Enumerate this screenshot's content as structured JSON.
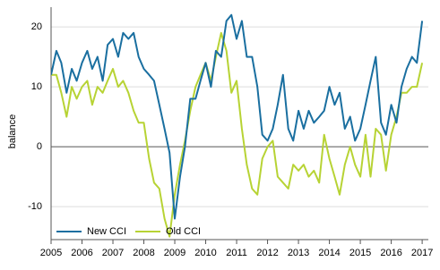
{
  "chart_data": {
    "type": "line",
    "y_label": "balance",
    "x": [
      2005,
      2005.17,
      2005.33,
      2005.5,
      2005.67,
      2005.83,
      2006,
      2006.17,
      2006.33,
      2006.5,
      2006.67,
      2006.83,
      2007,
      2007.17,
      2007.33,
      2007.5,
      2007.67,
      2007.83,
      2008,
      2008.17,
      2008.33,
      2008.5,
      2008.67,
      2008.83,
      2009,
      2009.17,
      2009.33,
      2009.5,
      2009.67,
      2009.83,
      2010,
      2010.17,
      2010.33,
      2010.5,
      2010.67,
      2010.83,
      2011,
      2011.17,
      2011.33,
      2011.5,
      2011.67,
      2011.83,
      2012,
      2012.17,
      2012.33,
      2012.5,
      2012.67,
      2012.83,
      2013,
      2013.17,
      2013.33,
      2013.5,
      2013.67,
      2013.83,
      2014,
      2014.17,
      2014.33,
      2014.5,
      2014.67,
      2014.83,
      2015,
      2015.17,
      2015.33,
      2015.5,
      2015.67,
      2015.83,
      2016,
      2016.17,
      2016.33,
      2016.5,
      2016.67,
      2016.83,
      2017
    ],
    "series": [
      {
        "name": "New CCI",
        "color": "#1a6fa0",
        "values": [
          12,
          16,
          14,
          9,
          13,
          11,
          14,
          16,
          13,
          15,
          11,
          17,
          18,
          15,
          19,
          18,
          19,
          15,
          13,
          12,
          11,
          7,
          3,
          -1,
          -12,
          -5,
          0,
          8,
          8,
          11,
          14,
          10,
          16,
          15,
          21,
          22,
          18,
          21,
          15,
          15,
          10,
          2,
          1,
          3,
          7,
          12,
          3,
          1,
          6,
          3,
          6,
          4,
          5,
          6,
          10,
          7,
          9,
          3,
          5,
          1,
          3,
          7,
          11,
          15,
          4,
          2,
          7,
          4,
          10,
          13,
          15,
          14,
          21
        ]
      },
      {
        "name": "Old CCI",
        "color": "#b7d334",
        "values": [
          12,
          12,
          9,
          5,
          10,
          8,
          10,
          11,
          7,
          10,
          9,
          11,
          13,
          10,
          11,
          9,
          6,
          4,
          4,
          -2,
          -6,
          -7,
          -12,
          -15,
          -8,
          -3,
          1,
          6,
          10,
          12,
          14,
          11,
          15,
          19,
          16,
          9,
          11,
          3,
          -3,
          -7,
          -8,
          -2,
          0,
          1,
          -5,
          -6,
          -7,
          -3,
          -4,
          -3,
          -5,
          -4,
          -6,
          2,
          -2,
          -5,
          -8,
          -3,
          0,
          -3,
          -5,
          2,
          -5,
          3,
          2,
          -4,
          2,
          5,
          9,
          9,
          10,
          10,
          14
        ]
      }
    ],
    "xlim": [
      2005,
      2017.2
    ],
    "xticks": [
      2005,
      2006,
      2007,
      2008,
      2009,
      2010,
      2011,
      2012,
      2013,
      2014,
      2015,
      2016,
      2017
    ],
    "ylim": [
      -15.5,
      23.3
    ],
    "yticks": [
      -10,
      0,
      10,
      20
    ],
    "grid": true,
    "legend": "bottom-left"
  }
}
